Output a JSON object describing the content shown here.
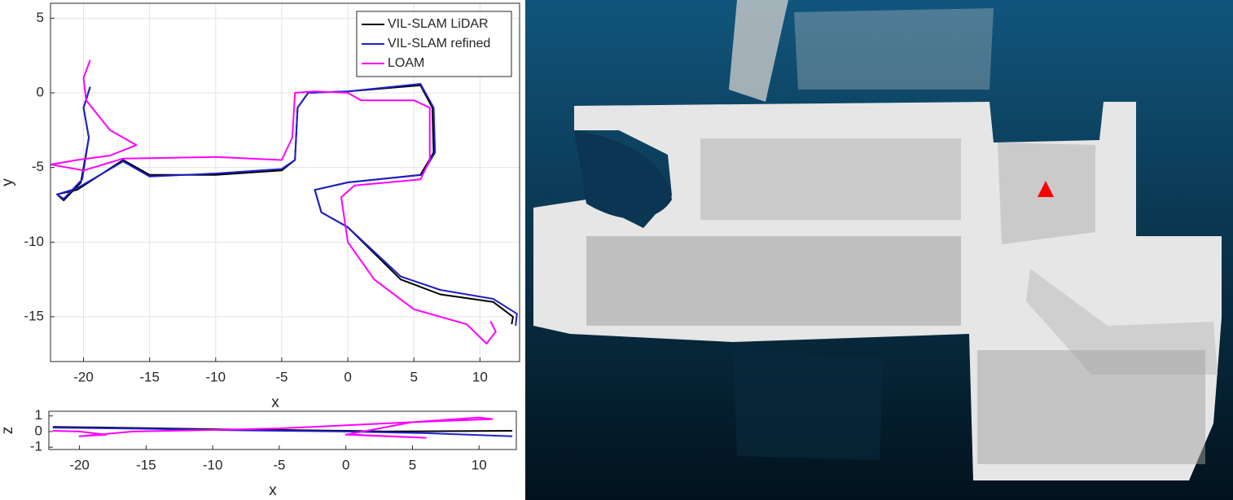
{
  "chart_data": [
    {
      "type": "line",
      "xlabel": "x",
      "ylabel": "y",
      "xlim": [
        -22.5,
        13
      ],
      "ylim": [
        -18,
        6
      ],
      "xticks": [
        -20,
        -15,
        -10,
        -5,
        0,
        5,
        10
      ],
      "yticks": [
        -15,
        -10,
        -5,
        0,
        5
      ],
      "grid": true,
      "legend": "upper right",
      "series": [
        {
          "name": "VIL-SLAM LiDAR",
          "color": "#000000",
          "x": [
            -19.5,
            -20,
            -19.6,
            -20.2,
            -21.5,
            -22,
            -20.5,
            -17,
            -15,
            -10,
            -5,
            -4,
            -3.8,
            -3,
            0,
            5.5,
            6.4,
            6.5,
            5.5,
            0,
            -2.5,
            -2,
            0,
            4,
            7,
            11,
            12.5,
            12.4
          ],
          "values": [
            0.4,
            -1,
            -3,
            -6,
            -7.2,
            -6.8,
            -6.5,
            -4.5,
            -5.5,
            -5.5,
            -5.2,
            -4.5,
            -1,
            0,
            0.1,
            0.5,
            -1,
            -4,
            -5.5,
            -6,
            -6.5,
            -8,
            -9,
            -12.5,
            -13.5,
            -14,
            -15,
            -15.5
          ]
        },
        {
          "name": "VIL-SLAM refined",
          "color": "#2020c8",
          "x": [
            -19.5,
            -20,
            -19.6,
            -20.1,
            -21.5,
            -22,
            -20.5,
            -17,
            -15,
            -10,
            -5,
            -4,
            -3.8,
            -3,
            0,
            5.5,
            6.5,
            6.6,
            5.6,
            0,
            -2.5,
            -2,
            0,
            4,
            7,
            11,
            12.8,
            12.7
          ],
          "values": [
            0.4,
            -1,
            -3,
            -5.8,
            -7.1,
            -6.8,
            -6.4,
            -4.6,
            -5.6,
            -5.4,
            -5.1,
            -4.5,
            -1,
            0,
            0.1,
            0.6,
            -1,
            -4,
            -5.5,
            -6,
            -6.5,
            -8,
            -9,
            -12.3,
            -13.2,
            -13.8,
            -14.8,
            -15.6
          ]
        },
        {
          "name": "LOAM",
          "color": "#ff00ff",
          "x": [
            -19.5,
            -20,
            -19.8,
            -18,
            -16,
            -18,
            -20.5,
            -22.5,
            -20,
            -17,
            -10,
            -5,
            -4.2,
            -4,
            -2.5,
            0,
            1,
            5,
            6.2,
            6.2,
            5.5,
            0.5,
            -0.5,
            0,
            2,
            5,
            9,
            10.5,
            11.2,
            10.8
          ],
          "values": [
            2.2,
            1,
            -0.5,
            -2.5,
            -3.5,
            -4.2,
            -4.5,
            -4.8,
            -5.2,
            -4.4,
            -4.3,
            -4.5,
            -3,
            0,
            0.1,
            0,
            -0.5,
            -0.5,
            -1,
            -4.5,
            -5.8,
            -6.2,
            -7,
            -10,
            -12.5,
            -14.5,
            -15.5,
            -16.8,
            -16,
            -15.3
          ]
        }
      ]
    },
    {
      "type": "line",
      "xlabel": "x",
      "ylabel": "z",
      "xlim": [
        -22.3,
        12.8
      ],
      "ylim": [
        -1.15,
        1.3
      ],
      "xticks": [
        -20,
        -15,
        -10,
        -5,
        0,
        5,
        10
      ],
      "yticks": [
        -1,
        0,
        1
      ],
      "grid": false,
      "series": [
        {
          "name": "VIL-SLAM LiDAR",
          "color": "#000000",
          "x": [
            -22,
            -15,
            -10,
            -5,
            0,
            3,
            6,
            12.5
          ],
          "values": [
            0.3,
            0.22,
            0.15,
            0.1,
            0.05,
            0.0,
            0.02,
            0.05
          ]
        },
        {
          "name": "VIL-SLAM refined",
          "color": "#2020c8",
          "x": [
            -22,
            -15,
            -10,
            -5,
            0,
            6,
            12.5
          ],
          "values": [
            0.25,
            0.18,
            0.1,
            0.05,
            0.0,
            -0.1,
            -0.3
          ]
        },
        {
          "name": "LOAM",
          "color": "#ff00ff",
          "x": [
            -22,
            -20,
            -18,
            -20,
            -16,
            -10,
            -5,
            0,
            5,
            11,
            10,
            5,
            0,
            6,
            0.5
          ],
          "values": [
            0.05,
            0,
            -0.2,
            -0.3,
            0,
            0.1,
            0.2,
            0.4,
            0.6,
            0.8,
            0.9,
            0.6,
            -0.2,
            -0.4,
            -0.2
          ]
        }
      ]
    }
  ]
}
